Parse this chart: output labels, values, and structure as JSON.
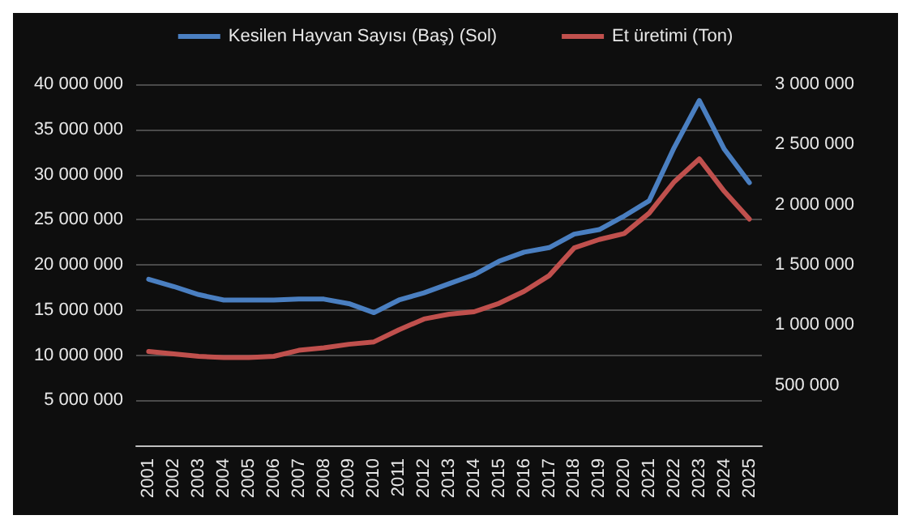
{
  "chart_data": {
    "type": "line",
    "categories": [
      "2001",
      "2002",
      "2003",
      "2004",
      "2005",
      "2006",
      "2007",
      "2008",
      "2009",
      "2010",
      "2011",
      "2012",
      "2013",
      "2014",
      "2015",
      "2016",
      "2017",
      "2018",
      "2019",
      "2020",
      "2021",
      "2022",
      "2023",
      "2024",
      "2025"
    ],
    "series": [
      {
        "name": "Kesilen Hayvan Sayısı (Baş) (Sol)",
        "color": "#4a7fc1",
        "values": [
          18400000,
          17600000,
          16700000,
          16100000,
          16100000,
          16100000,
          16200000,
          16200000,
          15700000,
          14700000,
          16100000,
          16900000,
          17900000,
          18900000,
          20400000,
          21400000,
          21900000,
          23400000,
          23900000,
          25400000,
          27100000,
          33000000,
          38200000,
          32800000,
          29100000
        ]
      },
      {
        "name": "Et üretimi (Ton)",
        "color": "#c0504d",
        "axis": "y2",
        "values": [
          780000,
          760000,
          740000,
          730000,
          730000,
          740000,
          790000,
          810000,
          840000,
          860000,
          960000,
          1050000,
          1090000,
          1110000,
          1180000,
          1280000,
          1410000,
          1640000,
          1710000,
          1760000,
          1930000,
          2190000,
          2380000,
          2110000,
          1880000
        ]
      }
    ],
    "ylim": [
      0,
      40000000
    ],
    "yticks": [
      5000000,
      10000000,
      15000000,
      20000000,
      25000000,
      30000000,
      35000000,
      40000000
    ],
    "y2lim": [
      0,
      3000000
    ],
    "y2ticks": [
      500000,
      1000000,
      1500000,
      2000000,
      2500000,
      3000000
    ],
    "grid": "y",
    "legend": "top",
    "marker": "none",
    "line_style": "solid"
  }
}
